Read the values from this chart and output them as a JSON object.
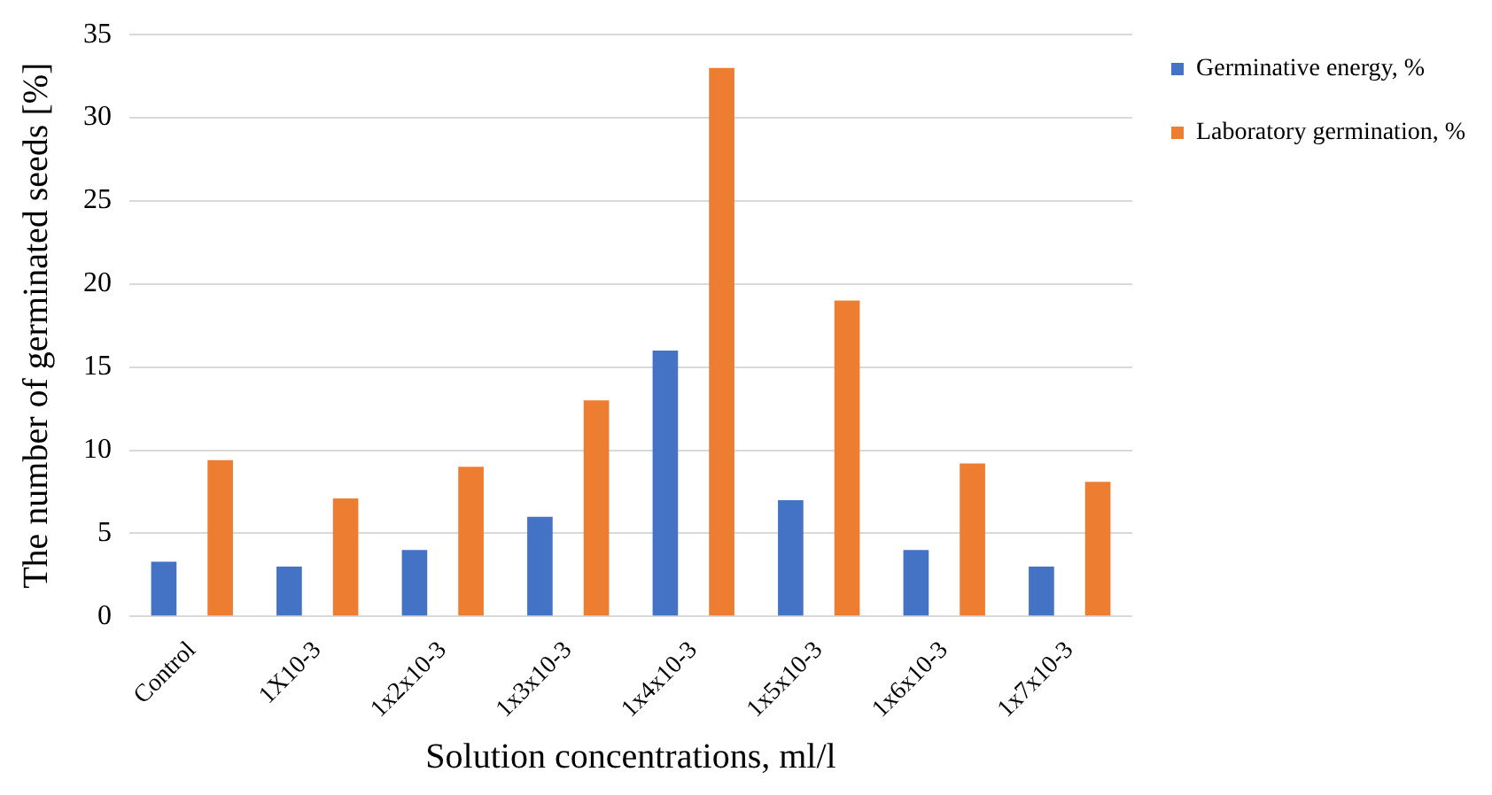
{
  "chart_data": {
    "type": "bar",
    "xlabel": "Solution concentrations, ml/l",
    "ylabel": "The number of germinated seeds [%]",
    "categories": [
      "Control",
      "1X10-3",
      "1x2x10-3",
      "1x3x10-3",
      "1x4x10-3",
      "1x5x10-3",
      "1x6x10-3",
      "1x7x10-3"
    ],
    "series": [
      {
        "name": "Germinative energy, %",
        "color": "#4472c4",
        "values": [
          3.3,
          3,
          4,
          6,
          16,
          7,
          4,
          3
        ]
      },
      {
        "name": "Laboratory germination, %",
        "color": "#ed7d31",
        "values": [
          9.4,
          7.1,
          9,
          13,
          33,
          19,
          9.2,
          8.1
        ]
      }
    ],
    "ylim": [
      0,
      35
    ],
    "yticks": [
      0,
      5,
      10,
      15,
      20,
      25,
      30,
      35
    ],
    "grid": "y",
    "legend": "top right"
  }
}
